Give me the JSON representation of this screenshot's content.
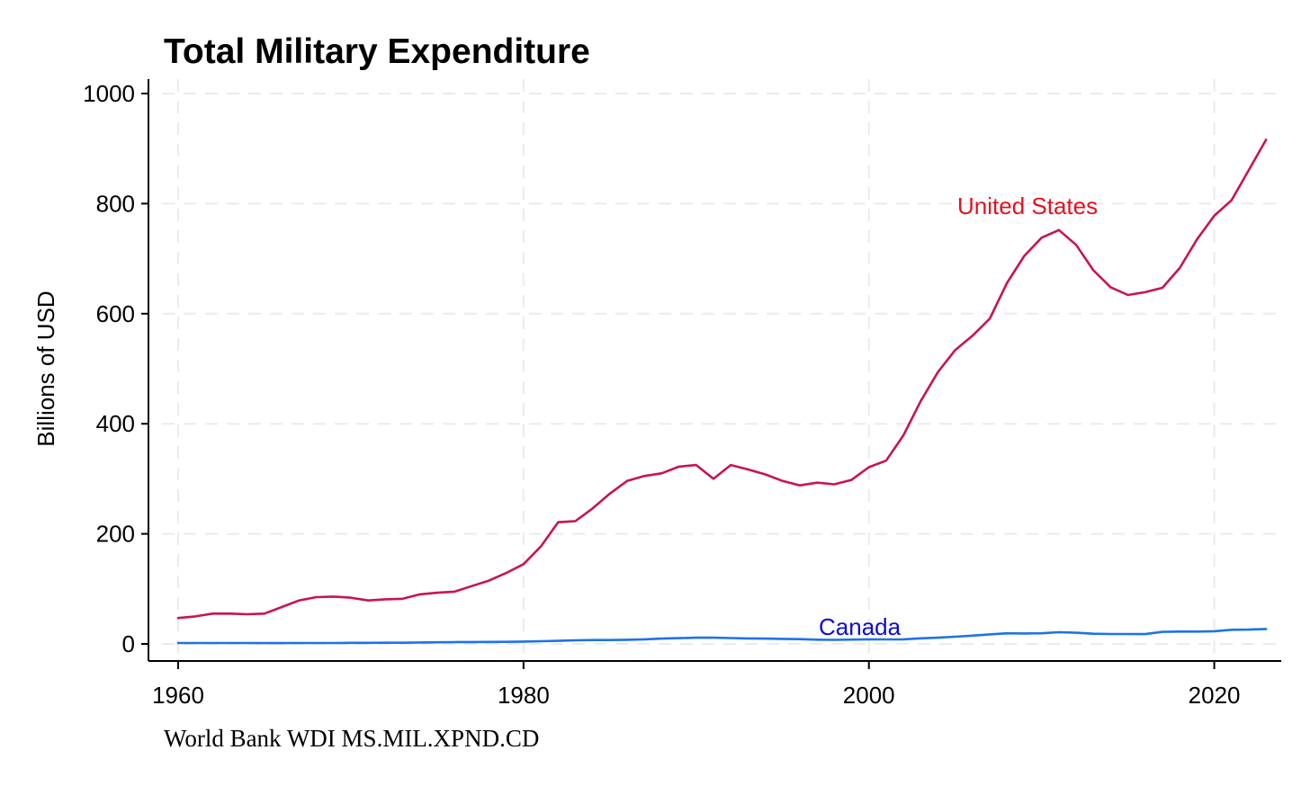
{
  "chart_data": {
    "type": "line",
    "title": "Total Military Expenditure",
    "xlabel": "",
    "ylabel": "Billions of USD",
    "note": "World Bank WDI MS.MIL.XPND.CD",
    "xlim": [
      1960,
      2023
    ],
    "ylim": [
      0,
      1000
    ],
    "xticks": [
      1960,
      1980,
      2000,
      2020
    ],
    "yticks": [
      0,
      200,
      400,
      600,
      800,
      1000
    ],
    "grid": true,
    "legend": "none (series labeled directly on the lines)",
    "series": [
      {
        "name": "United States",
        "color": "#c8154d",
        "label_color": "#e8101e",
        "x": [
          1960,
          1961,
          1962,
          1963,
          1964,
          1965,
          1966,
          1967,
          1968,
          1969,
          1970,
          1971,
          1972,
          1973,
          1974,
          1975,
          1976,
          1977,
          1978,
          1979,
          1980,
          1981,
          1982,
          1983,
          1984,
          1985,
          1986,
          1987,
          1988,
          1989,
          1990,
          1991,
          1992,
          1993,
          1994,
          1995,
          1996,
          1997,
          1998,
          1999,
          2000,
          2001,
          2002,
          2003,
          2004,
          2005,
          2006,
          2007,
          2008,
          2009,
          2010,
          2011,
          2012,
          2013,
          2014,
          2015,
          2016,
          2017,
          2018,
          2019,
          2020,
          2021,
          2022,
          2023
        ],
        "values": [
          47,
          50,
          55,
          55,
          54,
          55,
          67,
          79,
          85,
          86,
          84,
          79,
          81,
          82,
          90,
          93,
          95,
          105,
          115,
          129,
          145,
          177,
          221,
          223,
          246,
          273,
          296,
          305,
          310,
          322,
          325,
          300,
          325,
          317,
          308,
          296,
          288,
          293,
          290,
          298,
          321,
          333,
          379,
          441,
          494,
          534,
          560,
          591,
          656,
          705,
          738,
          752,
          725,
          679,
          648,
          634,
          639,
          647,
          683,
          735,
          778,
          806,
          861,
          916
        ]
      },
      {
        "name": "Canada",
        "color": "#1d73e8",
        "label_color": "#0a0adc",
        "x": [
          1960,
          1961,
          1962,
          1963,
          1964,
          1965,
          1966,
          1967,
          1968,
          1969,
          1970,
          1971,
          1972,
          1973,
          1974,
          1975,
          1976,
          1977,
          1978,
          1979,
          1980,
          1981,
          1982,
          1983,
          1984,
          1985,
          1986,
          1987,
          1988,
          1989,
          1990,
          1991,
          1992,
          1993,
          1994,
          1995,
          1996,
          1997,
          1998,
          1999,
          2000,
          2001,
          2002,
          2003,
          2004,
          2005,
          2006,
          2007,
          2008,
          2009,
          2010,
          2011,
          2012,
          2013,
          2014,
          2015,
          2016,
          2017,
          2018,
          2019,
          2020,
          2021,
          2022,
          2023
        ],
        "values": [
          1.7,
          1.7,
          1.6,
          1.6,
          1.6,
          1.5,
          1.5,
          1.7,
          1.7,
          1.7,
          1.9,
          2.0,
          2.1,
          2.2,
          2.6,
          3.0,
          3.3,
          3.5,
          3.6,
          3.8,
          4.2,
          4.9,
          5.6,
          6.5,
          7.0,
          7.1,
          7.5,
          8.4,
          9.7,
          10.4,
          11.2,
          11.2,
          10.6,
          10.0,
          9.6,
          9.1,
          8.6,
          7.7,
          7.4,
          7.9,
          8.3,
          8.1,
          8.4,
          10.1,
          11.3,
          13.1,
          15.0,
          17.4,
          19.3,
          19.0,
          19.3,
          21.3,
          20.3,
          18.5,
          17.9,
          17.9,
          17.8,
          21.9,
          22.4,
          22.4,
          23.0,
          25.6,
          26.0,
          27.2
        ]
      }
    ]
  }
}
